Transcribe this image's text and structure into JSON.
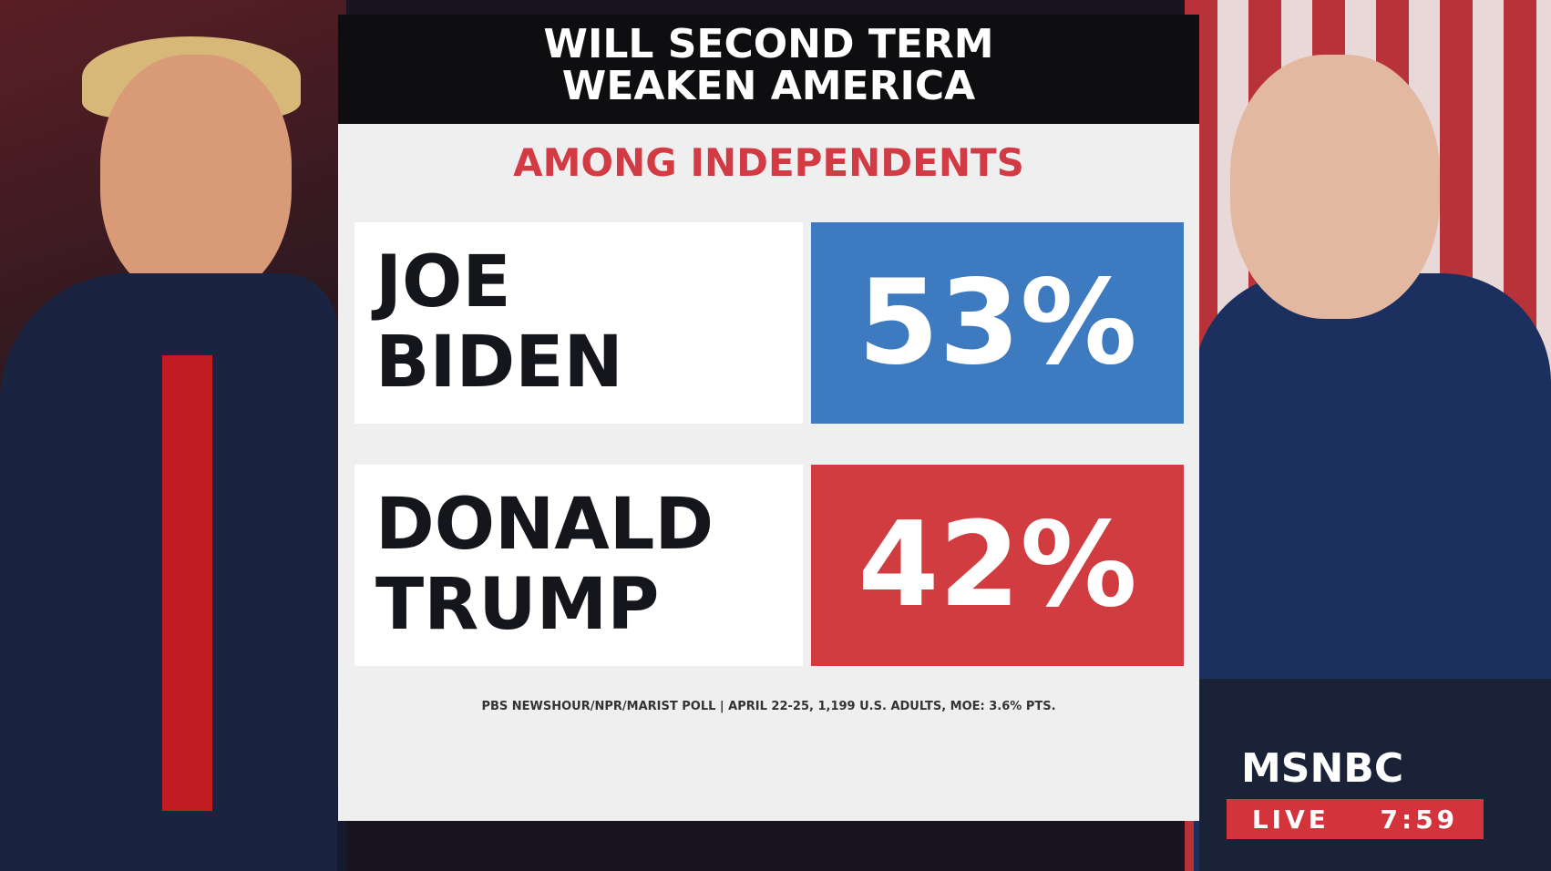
{
  "header": {
    "title_lines": [
      "WILL SECOND TERM",
      "WEAKEN AMERICA"
    ],
    "subtitle": "AMONG INDEPENDENTS"
  },
  "rows": [
    {
      "name_lines": [
        "JOE",
        "BIDEN"
      ],
      "value": "53%"
    },
    {
      "name_lines": [
        "DONALD",
        "TRUMP"
      ],
      "value": "42%"
    }
  ],
  "source": "PBS NEWSHOUR/NPR/MARIST POLL | APRIL 22-25, 1,199 U.S. ADULTS, MOE: 3.6% PTS.",
  "bug": {
    "network": "MSNBC",
    "live": "LIVE",
    "time": "7:59"
  }
}
